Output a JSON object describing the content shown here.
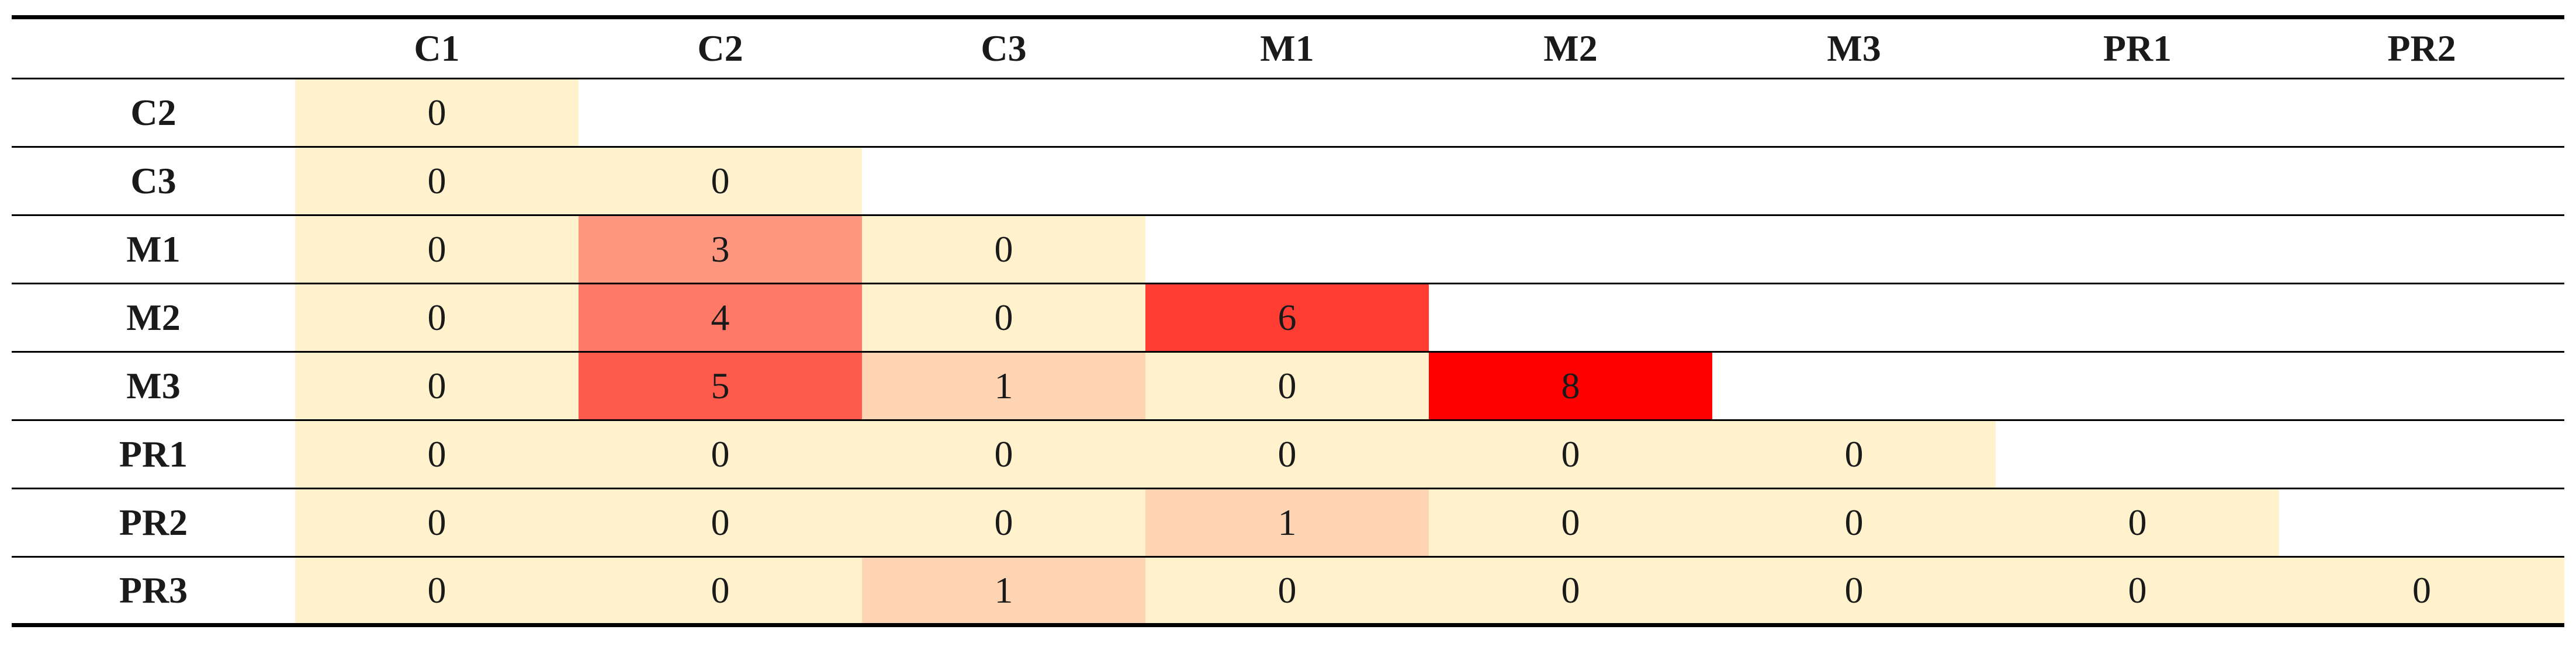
{
  "chart_data": {
    "type": "heatmap",
    "title": "",
    "xlabel": "",
    "ylabel": "",
    "columns": [
      "C1",
      "C2",
      "C3",
      "M1",
      "M2",
      "M3",
      "PR1",
      "PR2"
    ],
    "rows": [
      "C2",
      "C3",
      "M1",
      "M2",
      "M3",
      "PR1",
      "PR2",
      "PR3"
    ],
    "values": [
      [
        0
      ],
      [
        0,
        0
      ],
      [
        0,
        3,
        0
      ],
      [
        0,
        4,
        0,
        6
      ],
      [
        0,
        5,
        1,
        0,
        8
      ],
      [
        0,
        0,
        0,
        0,
        0,
        0
      ],
      [
        0,
        0,
        0,
        1,
        0,
        0,
        0
      ],
      [
        0,
        0,
        1,
        0,
        0,
        0,
        0,
        0
      ]
    ],
    "color_scale": {
      "min": 0,
      "max": 8,
      "low_color": "#fff2cc",
      "high_color": "#ff0000"
    }
  }
}
